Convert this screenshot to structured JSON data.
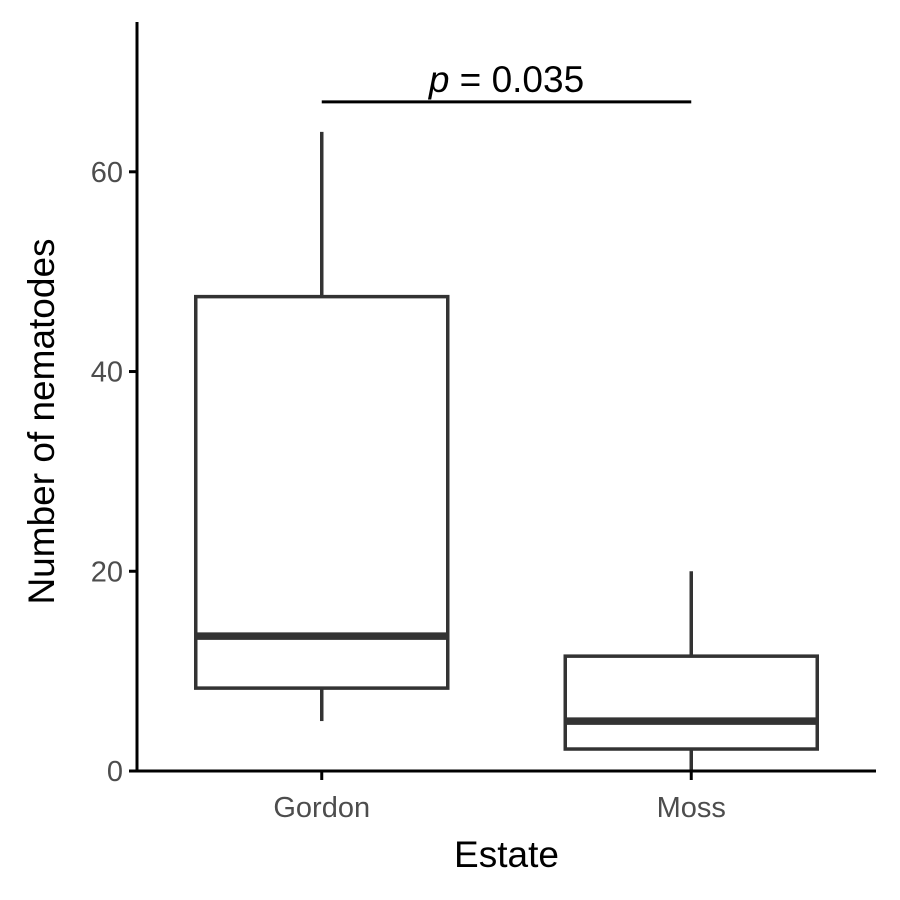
{
  "chart_data": {
    "type": "boxplot",
    "title": "",
    "xlabel": "Estate",
    "ylabel": "Number of nematodes",
    "ylim": [
      0,
      75
    ],
    "yticks": [
      0,
      20,
      40,
      60
    ],
    "ytick_labels": [
      "0",
      "20",
      "40",
      "60"
    ],
    "categories": [
      "Gordon",
      "Moss"
    ],
    "boxes": [
      {
        "category": "Gordon",
        "whisker_low": 5,
        "q1": 8.3,
        "median": 13.5,
        "q3": 47.5,
        "whisker_high": 64
      },
      {
        "category": "Moss",
        "whisker_low": 0,
        "q1": 2.2,
        "median": 5,
        "q3": 11.5,
        "whisker_high": 20
      }
    ],
    "annotation": {
      "p_symbol": "p",
      "p_text": " = 0.035",
      "y": 67,
      "from": "Gordon",
      "to": "Moss"
    },
    "grid": false,
    "legend": "none",
    "colors": {
      "box_stroke": "#333333",
      "axis": "#000000",
      "tick_label": "#4d4d4d"
    }
  }
}
